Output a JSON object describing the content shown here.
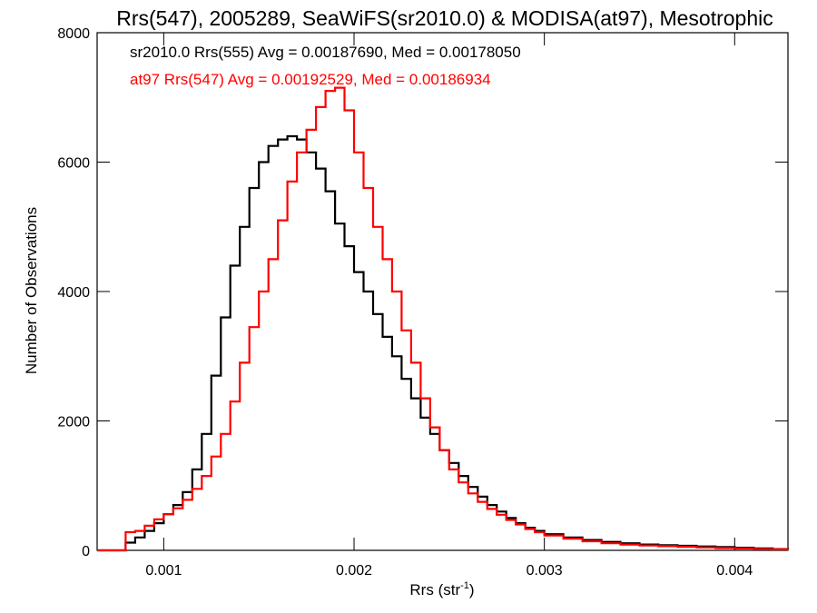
{
  "chart_data": {
    "type": "line",
    "step": true,
    "title": "Rrs(547), 2005289, SeaWiFS(sr2010.0) & MODISA(at97), Mesotrophic",
    "xlabel_main": "Rrs (str",
    "xlabel_sup": "-1",
    "xlabel_end": ")",
    "ylabel": "Number of Observations",
    "xlim": [
      0.00065,
      0.00428
    ],
    "ylim": [
      0,
      8000
    ],
    "x_ticks": [
      0.001,
      0.002,
      0.003,
      0.004
    ],
    "x_tick_labels": [
      "0.001",
      "0.002",
      "0.003",
      "0.004"
    ],
    "y_ticks": [
      0,
      2000,
      4000,
      6000,
      8000
    ],
    "y_tick_labels": [
      "0",
      "2000",
      "4000",
      "6000",
      "8000"
    ],
    "grid": false,
    "series": [
      {
        "name": "sr2010.0 Rrs(555)",
        "color": "#000000",
        "legend_text": "sr2010.0 Rrs(555) Avg = 0.00187690, Med = 0.00178050",
        "points": [
          [
            0.00065,
            0
          ],
          [
            0.00078,
            0
          ],
          [
            0.0008,
            120
          ],
          [
            0.00085,
            200
          ],
          [
            0.0009,
            300
          ],
          [
            0.00095,
            420
          ],
          [
            0.001,
            560
          ],
          [
            0.00105,
            700
          ],
          [
            0.0011,
            900
          ],
          [
            0.00115,
            1250
          ],
          [
            0.0012,
            1800
          ],
          [
            0.00125,
            2700
          ],
          [
            0.0013,
            3600
          ],
          [
            0.00135,
            4400
          ],
          [
            0.0014,
            5000
          ],
          [
            0.00145,
            5600
          ],
          [
            0.0015,
            6000
          ],
          [
            0.00155,
            6250
          ],
          [
            0.0016,
            6350
          ],
          [
            0.00165,
            6400
          ],
          [
            0.0017,
            6350
          ],
          [
            0.00175,
            6150
          ],
          [
            0.0018,
            5900
          ],
          [
            0.00185,
            5550
          ],
          [
            0.0019,
            5050
          ],
          [
            0.00195,
            4700
          ],
          [
            0.002,
            4300
          ],
          [
            0.00205,
            4000
          ],
          [
            0.0021,
            3650
          ],
          [
            0.00215,
            3300
          ],
          [
            0.0022,
            3000
          ],
          [
            0.00225,
            2650
          ],
          [
            0.0023,
            2350
          ],
          [
            0.00235,
            2050
          ],
          [
            0.0024,
            1800
          ],
          [
            0.00245,
            1550
          ],
          [
            0.0025,
            1350
          ],
          [
            0.00255,
            1150
          ],
          [
            0.0026,
            980
          ],
          [
            0.00265,
            830
          ],
          [
            0.0027,
            700
          ],
          [
            0.00275,
            600
          ],
          [
            0.0028,
            500
          ],
          [
            0.00285,
            420
          ],
          [
            0.0029,
            350
          ],
          [
            0.00295,
            300
          ],
          [
            0.003,
            250
          ],
          [
            0.0031,
            200
          ],
          [
            0.0032,
            160
          ],
          [
            0.0033,
            130
          ],
          [
            0.0034,
            110
          ],
          [
            0.0035,
            90
          ],
          [
            0.0036,
            80
          ],
          [
            0.0037,
            70
          ],
          [
            0.0038,
            60
          ],
          [
            0.0039,
            50
          ],
          [
            0.004,
            40
          ],
          [
            0.0041,
            30
          ],
          [
            0.0042,
            20
          ],
          [
            0.00428,
            15
          ]
        ]
      },
      {
        "name": "at97 Rrs(547)",
        "color": "#ff0000",
        "legend_text": "at97 Rrs(547) Avg = 0.00192529, Med = 0.00186934",
        "points": [
          [
            0.00065,
            0
          ],
          [
            0.00078,
            0
          ],
          [
            0.0008,
            280
          ],
          [
            0.00085,
            300
          ],
          [
            0.0009,
            380
          ],
          [
            0.00095,
            480
          ],
          [
            0.001,
            560
          ],
          [
            0.00105,
            650
          ],
          [
            0.0011,
            780
          ],
          [
            0.00115,
            950
          ],
          [
            0.0012,
            1150
          ],
          [
            0.00125,
            1450
          ],
          [
            0.0013,
            1800
          ],
          [
            0.00135,
            2300
          ],
          [
            0.0014,
            2900
          ],
          [
            0.00145,
            3450
          ],
          [
            0.0015,
            4000
          ],
          [
            0.00155,
            4500
          ],
          [
            0.0016,
            5100
          ],
          [
            0.00165,
            5700
          ],
          [
            0.0017,
            6150
          ],
          [
            0.00175,
            6500
          ],
          [
            0.0018,
            6850
          ],
          [
            0.00185,
            7100
          ],
          [
            0.0019,
            7150
          ],
          [
            0.00195,
            6800
          ],
          [
            0.002,
            6150
          ],
          [
            0.00205,
            5600
          ],
          [
            0.0021,
            5000
          ],
          [
            0.00215,
            4500
          ],
          [
            0.0022,
            4000
          ],
          [
            0.00225,
            3400
          ],
          [
            0.0023,
            2900
          ],
          [
            0.00235,
            2350
          ],
          [
            0.0024,
            1900
          ],
          [
            0.00245,
            1550
          ],
          [
            0.0025,
            1250
          ],
          [
            0.00255,
            1050
          ],
          [
            0.0026,
            880
          ],
          [
            0.00265,
            750
          ],
          [
            0.0027,
            640
          ],
          [
            0.00275,
            550
          ],
          [
            0.0028,
            470
          ],
          [
            0.00285,
            400
          ],
          [
            0.0029,
            330
          ],
          [
            0.00295,
            280
          ],
          [
            0.003,
            230
          ],
          [
            0.0031,
            180
          ],
          [
            0.0032,
            140
          ],
          [
            0.0033,
            110
          ],
          [
            0.0034,
            90
          ],
          [
            0.0035,
            75
          ],
          [
            0.0036,
            65
          ],
          [
            0.0037,
            55
          ],
          [
            0.0038,
            45
          ],
          [
            0.0039,
            35
          ],
          [
            0.004,
            30
          ],
          [
            0.0041,
            20
          ],
          [
            0.0042,
            15
          ],
          [
            0.00428,
            10
          ]
        ]
      }
    ]
  }
}
